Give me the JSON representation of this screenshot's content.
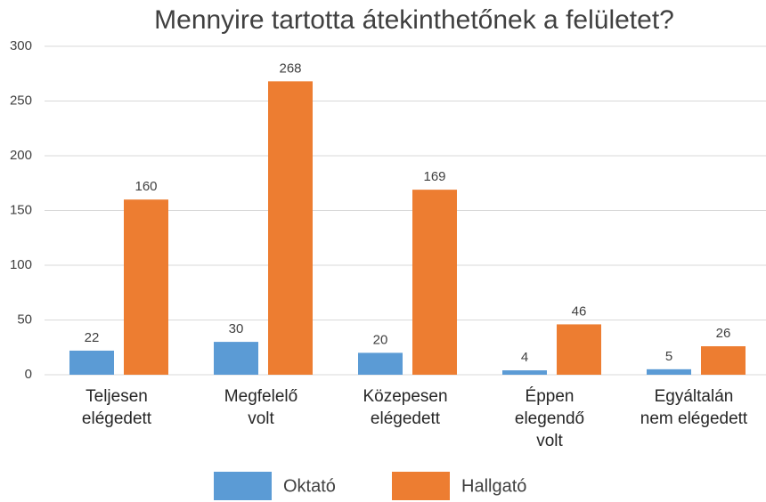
{
  "chart_data": {
    "type": "bar",
    "title": "Mennyire tartotta átekinthetőnek a felületet?",
    "categories": [
      "Teljesen\nelégedett",
      "Megfelelő\nvolt",
      "Közepesen\nelégedett",
      "Éppen\nelegendő\nvolt",
      "Egyáltalán\nnem elégedett"
    ],
    "series": [
      {
        "name": "Oktató",
        "color": "#5b9bd5",
        "values": [
          22,
          30,
          20,
          4,
          5
        ]
      },
      {
        "name": "Hallgató",
        "color": "#ed7d31",
        "values": [
          160,
          268,
          169,
          46,
          26
        ]
      }
    ],
    "ylim": [
      0,
      300
    ],
    "yticks": [
      0,
      50,
      100,
      150,
      200,
      250,
      300
    ],
    "grid": true,
    "legend": "bottom"
  }
}
